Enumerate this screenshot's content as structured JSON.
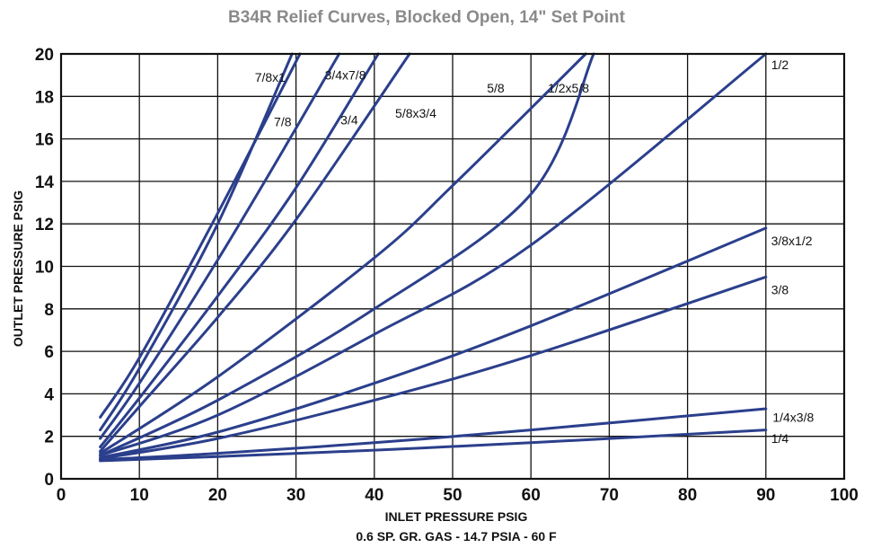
{
  "chart_data": {
    "type": "line",
    "title": "B34R Relief Curves, Blocked Open, 14\" Set Point",
    "xlabel": "INLET PRESSURE PSIG",
    "xlabel2": "0.6 SP. GR. GAS - 14.7 PSIA - 60 F",
    "ylabel": "OUTLET PRESSURE PSIG",
    "xlim": [
      0,
      100
    ],
    "ylim": [
      0,
      20
    ],
    "x_ticks": [
      "0",
      "10",
      "20",
      "30",
      "40",
      "50",
      "60",
      "70",
      "80",
      "90",
      "100"
    ],
    "y_ticks": [
      "0",
      "2",
      "4",
      "6",
      "8",
      "10",
      "12",
      "14",
      "16",
      "18",
      "20"
    ],
    "grid": true,
    "line_color": "#2b3f8c",
    "series": [
      {
        "name": "7/8x1",
        "x": [
          5,
          10,
          20,
          30.5
        ],
        "y": [
          2.9,
          5.7,
          12.5,
          20.0
        ],
        "label_x": 26.7,
        "label_y": 18.9
      },
      {
        "name": "7/8",
        "x": [
          5,
          10,
          20,
          29.5
        ],
        "y": [
          2.3,
          5.2,
          12.0,
          20.0
        ],
        "label_x": 28.3,
        "label_y": 16.8
      },
      {
        "name": "3/4x7/8",
        "x": [
          5,
          10,
          20,
          30,
          35.5
        ],
        "y": [
          1.9,
          4.5,
          10.3,
          16.5,
          20.0
        ],
        "label_x": 36.3,
        "label_y": 19.0
      },
      {
        "name": "3/4",
        "x": [
          5,
          10,
          20,
          30,
          40.5
        ],
        "y": [
          1.5,
          3.8,
          8.6,
          13.7,
          20.0
        ],
        "label_x": 36.8,
        "label_y": 16.9
      },
      {
        "name": "5/8x3/4",
        "x": [
          5,
          10,
          20,
          30,
          44.5
        ],
        "y": [
          1.3,
          3.4,
          7.6,
          12.2,
          20.0
        ],
        "label_x": 45.3,
        "label_y": 17.2
      },
      {
        "name": "5/8",
        "x": [
          5,
          20,
          40,
          50,
          67
        ],
        "y": [
          1.2,
          4.8,
          10.4,
          13.8,
          20.0
        ],
        "label_x": 55.5,
        "label_y": 18.4
      },
      {
        "name": "1/2x5/8",
        "x": [
          5,
          20,
          40,
          60,
          68
        ],
        "y": [
          1.1,
          3.7,
          8.0,
          13.4,
          20.0
        ],
        "label_x": 64.8,
        "label_y": 18.4
      },
      {
        "name": "1/2",
        "x": [
          5,
          20,
          40,
          60,
          90
        ],
        "y": [
          1.1,
          3.0,
          6.8,
          11.0,
          20.0
        ],
        "label_x": 91.8,
        "label_y": 19.5
      },
      {
        "name": "3/8x1/2",
        "x": [
          5,
          20,
          40,
          60,
          90
        ],
        "y": [
          1.0,
          2.2,
          4.5,
          7.2,
          11.8
        ],
        "label_x": 93.3,
        "label_y": 11.2
      },
      {
        "name": "3/8",
        "x": [
          5,
          20,
          40,
          60,
          90
        ],
        "y": [
          0.95,
          1.9,
          3.7,
          5.8,
          9.5
        ],
        "label_x": 91.8,
        "label_y": 8.9
      },
      {
        "name": "1/4x3/8",
        "x": [
          5,
          20,
          40,
          60,
          90
        ],
        "y": [
          0.9,
          1.2,
          1.7,
          2.3,
          3.3
        ],
        "label_x": 93.5,
        "label_y": 2.9
      },
      {
        "name": "1/4",
        "x": [
          5,
          20,
          40,
          60,
          90
        ],
        "y": [
          0.85,
          1.05,
          1.35,
          1.7,
          2.3
        ],
        "label_x": 91.8,
        "label_y": 1.9
      }
    ]
  }
}
